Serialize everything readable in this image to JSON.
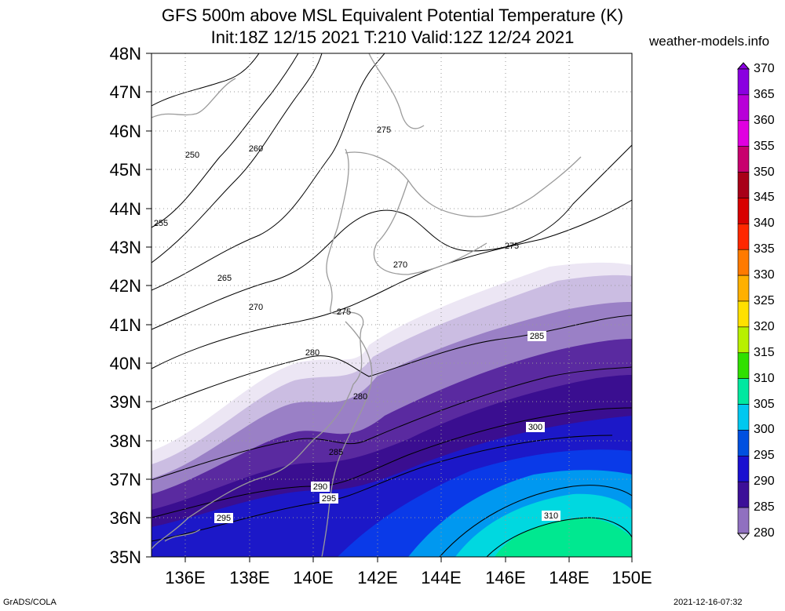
{
  "title_line1": "GFS 500m above MSL Equivalent Potential Temperature (K)",
  "title_line2": "Init:18Z 12/15 2021 T:210 Valid:12Z 12/24 2021",
  "site": "weather-models.info",
  "footer_left": "GrADS/COLA",
  "footer_right": "2021-12-16-07:32",
  "lat_labels": [
    "48N",
    "47N",
    "46N",
    "45N",
    "44N",
    "43N",
    "42N",
    "41N",
    "40N",
    "39N",
    "38N",
    "37N",
    "36N",
    "35N"
  ],
  "lon_labels": [
    "136E",
    "138E",
    "140E",
    "142E",
    "144E",
    "146E",
    "148E",
    "150E"
  ],
  "colorbar_labels": [
    "370",
    "365",
    "360",
    "355",
    "350",
    "345",
    "340",
    "335",
    "330",
    "325",
    "320",
    "315",
    "310",
    "305",
    "300",
    "295",
    "290",
    "285",
    "280"
  ],
  "colorbar_colors": [
    "#8a00e0",
    "#b800d8",
    "#e000e0",
    "#c8006e",
    "#a80018",
    "#d80000",
    "#ff2800",
    "#ff7a00",
    "#ffb000",
    "#ffe000",
    "#b8f000",
    "#30e000",
    "#00e8a0",
    "#00c8f0",
    "#0050e0",
    "#1a10d0",
    "#3c1098",
    "#9070c0",
    "#e8e0f0"
  ],
  "contour_labels": [
    {
      "text": "250"
    },
    {
      "text": "255"
    },
    {
      "text": "260"
    },
    {
      "text": "265"
    },
    {
      "text": "270"
    },
    {
      "text": "270"
    },
    {
      "text": "275"
    },
    {
      "text": "275"
    },
    {
      "text": "275"
    },
    {
      "text": "280"
    },
    {
      "text": "280"
    },
    {
      "text": "285"
    },
    {
      "text": "285"
    },
    {
      "text": "290"
    },
    {
      "text": "295"
    },
    {
      "text": "295"
    },
    {
      "text": "300"
    },
    {
      "text": "310"
    }
  ]
}
